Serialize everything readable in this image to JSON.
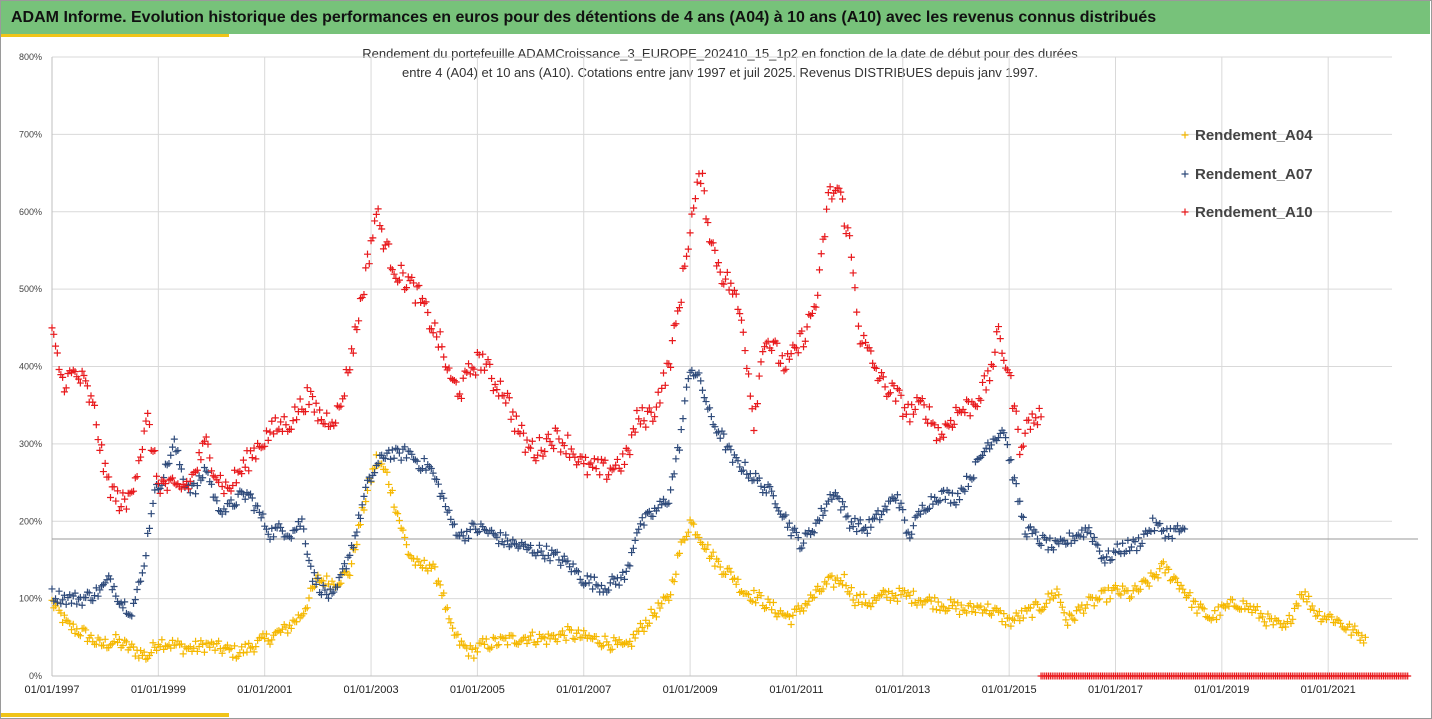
{
  "banner": {
    "title": "ADAM Informe. Evolution historique des performances en euros pour des détentions de 4 ans (A04) à 10 ans (A10) avec les revenus connus distribués"
  },
  "chart_data": {
    "type": "scatter",
    "title_line1": "Rendement du portefeuille ADAMCroissance_3_EUROPE_202410_15_1p2  en fonction de la date de début pour des durées",
    "title_line2": "entre 4 (A04) et 10 ans (A10). Cotations entre janv 1997 et juil 2025. Revenus DISTRIBUES depuis janv 1997.",
    "xlabel": "",
    "ylabel": "",
    "x_ticks": [
      "01/01/1997",
      "01/01/1999",
      "01/01/2001",
      "01/01/2003",
      "01/01/2005",
      "01/01/2007",
      "01/01/2009",
      "01/01/2011",
      "01/01/2013",
      "01/01/2015",
      "01/01/2017",
      "01/01/2019",
      "01/01/2021"
    ],
    "y_ticks": [
      "0%",
      "100%",
      "200%",
      "300%",
      "400%",
      "500%",
      "600%",
      "700%",
      "800%"
    ],
    "x_range": [
      1997.0,
      2022.2
    ],
    "ylim": [
      0,
      800
    ],
    "reference_line": 177,
    "legend_position": "right",
    "grid": true,
    "series": [
      {
        "name": "Rendement_A04",
        "color": "#f5b800",
        "points": [
          [
            1997.0,
            95
          ],
          [
            1997.3,
            65
          ],
          [
            1997.6,
            55
          ],
          [
            1997.9,
            40
          ],
          [
            1998.2,
            45
          ],
          [
            1998.5,
            35
          ],
          [
            1998.8,
            25
          ],
          [
            1999.0,
            45
          ],
          [
            1999.3,
            40
          ],
          [
            1999.6,
            35
          ],
          [
            1999.9,
            40
          ],
          [
            2000.2,
            35
          ],
          [
            2000.5,
            30
          ],
          [
            2000.8,
            40
          ],
          [
            2001.1,
            50
          ],
          [
            2001.4,
            60
          ],
          [
            2001.7,
            80
          ],
          [
            2002.0,
            125
          ],
          [
            2002.3,
            120
          ],
          [
            2002.6,
            135
          ],
          [
            2002.9,
            230
          ],
          [
            2003.1,
            280
          ],
          [
            2003.3,
            260
          ],
          [
            2003.5,
            210
          ],
          [
            2003.7,
            160
          ],
          [
            2003.9,
            140
          ],
          [
            2004.1,
            145
          ],
          [
            2004.3,
            120
          ],
          [
            2004.5,
            60
          ],
          [
            2004.7,
            40
          ],
          [
            2004.9,
            30
          ],
          [
            2005.1,
            40
          ],
          [
            2005.5,
            45
          ],
          [
            2005.9,
            50
          ],
          [
            2006.3,
            48
          ],
          [
            2006.7,
            55
          ],
          [
            2007.0,
            50
          ],
          [
            2007.4,
            45
          ],
          [
            2007.8,
            35
          ],
          [
            2008.0,
            55
          ],
          [
            2008.3,
            80
          ],
          [
            2008.6,
            100
          ],
          [
            2008.8,
            160
          ],
          [
            2009.0,
            200
          ],
          [
            2009.2,
            180
          ],
          [
            2009.4,
            155
          ],
          [
            2009.6,
            140
          ],
          [
            2009.8,
            130
          ],
          [
            2010.0,
            110
          ],
          [
            2010.3,
            100
          ],
          [
            2010.6,
            85
          ],
          [
            2010.9,
            75
          ],
          [
            2011.2,
            95
          ],
          [
            2011.6,
            120
          ],
          [
            2011.9,
            125
          ],
          [
            2012.1,
            100
          ],
          [
            2012.4,
            95
          ],
          [
            2012.7,
            105
          ],
          [
            2013.0,
            105
          ],
          [
            2013.3,
            100
          ],
          [
            2013.6,
            95
          ],
          [
            2013.9,
            90
          ],
          [
            2014.2,
            85
          ],
          [
            2014.5,
            90
          ],
          [
            2014.8,
            80
          ],
          [
            2015.0,
            70
          ],
          [
            2015.3,
            80
          ],
          [
            2015.6,
            90
          ],
          [
            2015.9,
            110
          ],
          [
            2016.1,
            70
          ],
          [
            2016.4,
            90
          ],
          [
            2016.7,
            100
          ],
          [
            2017.0,
            110
          ],
          [
            2017.3,
            105
          ],
          [
            2017.6,
            120
          ],
          [
            2017.9,
            140
          ],
          [
            2018.2,
            120
          ],
          [
            2018.5,
            90
          ],
          [
            2018.8,
            75
          ],
          [
            2019.0,
            85
          ],
          [
            2019.3,
            95
          ],
          [
            2019.6,
            85
          ],
          [
            2019.9,
            70
          ],
          [
            2020.2,
            60
          ],
          [
            2020.5,
            110
          ],
          [
            2020.8,
            80
          ],
          [
            2021.1,
            75
          ],
          [
            2021.4,
            60
          ],
          [
            2021.7,
            50
          ]
        ]
      },
      {
        "name": "Rendement_A07",
        "color": "#2e4a7a",
        "points": [
          [
            1997.0,
            105
          ],
          [
            1997.3,
            100
          ],
          [
            1997.6,
            100
          ],
          [
            1997.9,
            110
          ],
          [
            1998.1,
            125
          ],
          [
            1998.3,
            95
          ],
          [
            1998.5,
            85
          ],
          [
            1998.7,
            130
          ],
          [
            1998.9,
            230
          ],
          [
            1999.1,
            260
          ],
          [
            1999.3,
            300
          ],
          [
            1999.5,
            250
          ],
          [
            1999.7,
            240
          ],
          [
            1999.9,
            270
          ],
          [
            2000.1,
            220
          ],
          [
            2000.3,
            215
          ],
          [
            2000.5,
            230
          ],
          [
            2000.7,
            235
          ],
          [
            2000.9,
            210
          ],
          [
            2001.1,
            185
          ],
          [
            2001.3,
            190
          ],
          [
            2001.5,
            185
          ],
          [
            2001.7,
            200
          ],
          [
            2001.9,
            130
          ],
          [
            2002.1,
            110
          ],
          [
            2002.3,
            100
          ],
          [
            2002.5,
            140
          ],
          [
            2002.7,
            180
          ],
          [
            2002.9,
            240
          ],
          [
            2003.1,
            270
          ],
          [
            2003.3,
            290
          ],
          [
            2003.5,
            285
          ],
          [
            2003.7,
            290
          ],
          [
            2003.9,
            275
          ],
          [
            2004.1,
            270
          ],
          [
            2004.3,
            240
          ],
          [
            2004.5,
            200
          ],
          [
            2004.7,
            180
          ],
          [
            2004.9,
            190
          ],
          [
            2005.1,
            190
          ],
          [
            2005.5,
            175
          ],
          [
            2005.9,
            165
          ],
          [
            2006.3,
            160
          ],
          [
            2006.7,
            145
          ],
          [
            2007.0,
            125
          ],
          [
            2007.4,
            115
          ],
          [
            2007.8,
            130
          ],
          [
            2008.0,
            190
          ],
          [
            2008.3,
            210
          ],
          [
            2008.6,
            230
          ],
          [
            2008.8,
            300
          ],
          [
            2009.0,
            400
          ],
          [
            2009.2,
            380
          ],
          [
            2009.4,
            330
          ],
          [
            2009.6,
            310
          ],
          [
            2009.8,
            280
          ],
          [
            2010.0,
            270
          ],
          [
            2010.3,
            250
          ],
          [
            2010.6,
            230
          ],
          [
            2010.9,
            190
          ],
          [
            2011.1,
            170
          ],
          [
            2011.4,
            200
          ],
          [
            2011.7,
            240
          ],
          [
            2012.0,
            200
          ],
          [
            2012.3,
            190
          ],
          [
            2012.6,
            210
          ],
          [
            2012.9,
            235
          ],
          [
            2013.1,
            180
          ],
          [
            2013.4,
            220
          ],
          [
            2013.7,
            235
          ],
          [
            2014.0,
            230
          ],
          [
            2014.3,
            260
          ],
          [
            2014.6,
            300
          ],
          [
            2014.9,
            320
          ],
          [
            2015.1,
            250
          ],
          [
            2015.3,
            190
          ],
          [
            2015.6,
            175
          ],
          [
            2015.9,
            165
          ],
          [
            2016.2,
            180
          ],
          [
            2016.5,
            190
          ],
          [
            2016.8,
            150
          ],
          [
            2017.1,
            165
          ],
          [
            2017.4,
            170
          ],
          [
            2017.7,
            195
          ],
          [
            2018.0,
            185
          ],
          [
            2018.3,
            190
          ]
        ]
      },
      {
        "name": "Rendement_A10",
        "color": "#e8191c",
        "points": [
          [
            1997.0,
            440
          ],
          [
            1997.2,
            380
          ],
          [
            1997.4,
            390
          ],
          [
            1997.6,
            380
          ],
          [
            1997.8,
            340
          ],
          [
            1998.0,
            260
          ],
          [
            1998.2,
            230
          ],
          [
            1998.4,
            220
          ],
          [
            1998.6,
            270
          ],
          [
            1998.8,
            330
          ],
          [
            1999.0,
            250
          ],
          [
            1999.3,
            240
          ],
          [
            1999.6,
            250
          ],
          [
            1999.9,
            300
          ],
          [
            2000.1,
            260
          ],
          [
            2000.3,
            240
          ],
          [
            2000.6,
            270
          ],
          [
            2000.9,
            300
          ],
          [
            2001.2,
            320
          ],
          [
            2001.5,
            330
          ],
          [
            2001.8,
            360
          ],
          [
            2002.1,
            330
          ],
          [
            2002.4,
            340
          ],
          [
            2002.7,
            440
          ],
          [
            2002.9,
            520
          ],
          [
            2003.1,
            600
          ],
          [
            2003.3,
            550
          ],
          [
            2003.5,
            520
          ],
          [
            2003.7,
            510
          ],
          [
            2003.9,
            490
          ],
          [
            2004.1,
            460
          ],
          [
            2004.3,
            430
          ],
          [
            2004.5,
            380
          ],
          [
            2004.7,
            370
          ],
          [
            2004.9,
            400
          ],
          [
            2005.1,
            410
          ],
          [
            2005.3,
            380
          ],
          [
            2005.5,
            370
          ],
          [
            2005.7,
            330
          ],
          [
            2005.9,
            300
          ],
          [
            2006.1,
            290
          ],
          [
            2006.4,
            310
          ],
          [
            2006.7,
            300
          ],
          [
            2007.0,
            270
          ],
          [
            2007.4,
            265
          ],
          [
            2007.8,
            280
          ],
          [
            2008.0,
            330
          ],
          [
            2008.3,
            340
          ],
          [
            2008.6,
            400
          ],
          [
            2008.8,
            480
          ],
          [
            2009.0,
            580
          ],
          [
            2009.2,
            650
          ],
          [
            2009.4,
            560
          ],
          [
            2009.6,
            520
          ],
          [
            2009.8,
            500
          ],
          [
            2010.0,
            450
          ],
          [
            2010.2,
            330
          ],
          [
            2010.4,
            440
          ],
          [
            2010.6,
            420
          ],
          [
            2010.8,
            400
          ],
          [
            2011.0,
            420
          ],
          [
            2011.2,
            450
          ],
          [
            2011.4,
            490
          ],
          [
            2011.6,
            620
          ],
          [
            2011.8,
            630
          ],
          [
            2012.0,
            560
          ],
          [
            2012.2,
            440
          ],
          [
            2012.4,
            410
          ],
          [
            2012.6,
            380
          ],
          [
            2012.9,
            360
          ],
          [
            2013.1,
            340
          ],
          [
            2013.4,
            350
          ],
          [
            2013.7,
            310
          ],
          [
            2014.0,
            340
          ],
          [
            2014.3,
            350
          ],
          [
            2014.6,
            380
          ],
          [
            2014.8,
            440
          ],
          [
            2015.0,
            390
          ],
          [
            2015.2,
            300
          ],
          [
            2015.4,
            330
          ],
          [
            2015.6,
            335
          ]
        ]
      }
    ],
    "baseline_marks": {
      "color": "#e8191c",
      "x_start": 2015.6,
      "x_end": 2022.5,
      "value": 0
    }
  }
}
